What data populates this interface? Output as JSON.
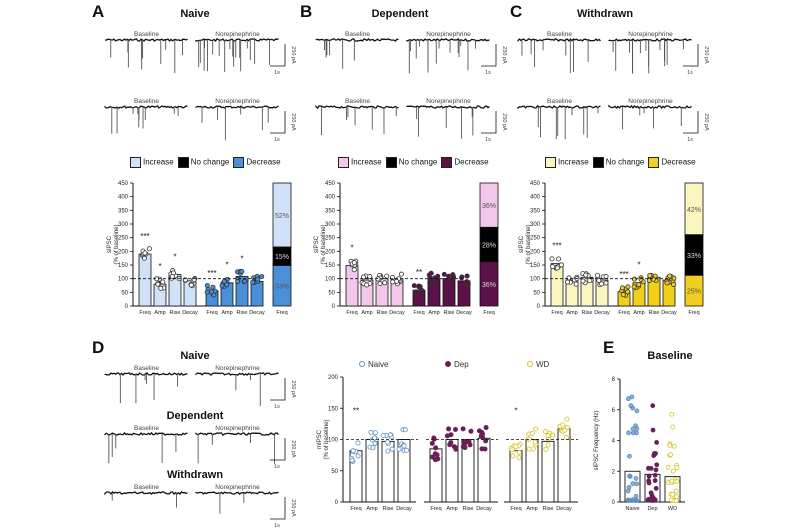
{
  "panels": {
    "A": {
      "letter": "A",
      "title": "Naive"
    },
    "B": {
      "letter": "B",
      "title": "Dependent"
    },
    "C": {
      "letter": "C",
      "title": "Withdrawn"
    },
    "D": {
      "letter": "D",
      "titles": [
        "Naive",
        "Dependent",
        "Withdrawn"
      ]
    },
    "E": {
      "letter": "E",
      "title": "Baseline"
    }
  },
  "trace_labels": {
    "baseline": "Baseline",
    "drug": "Norepinephrine",
    "scale_y": "250 pA",
    "scale_x": "1s"
  },
  "legend": {
    "increase": "Increase",
    "no_change": "No change",
    "decrease": "Decrease"
  },
  "colors": {
    "naive_light": "#cfe2f7",
    "naive_dark": "#4a90d9",
    "dep_light": "#f4c6ec",
    "dep_dark": "#5b1048",
    "wd_light": "#fbf5c0",
    "wd_dark": "#f2cf1d",
    "naive_point": "#5b8fc2",
    "dep_point": "#6a1f57",
    "wd_point": "#d6c21e"
  },
  "chart_data": [
    {
      "id": "A",
      "type": "bar",
      "ylabel": "sIPSC\n(% of baseline)",
      "ylim": [
        0,
        450
      ],
      "yticks": [
        0,
        50,
        100,
        150,
        200,
        250,
        300,
        350,
        400,
        450
      ],
      "reference_line": 100,
      "groups": [
        {
          "name": "Increase",
          "categories": [
            "Freq",
            "Amp",
            "Rise",
            "Decay"
          ],
          "values": [
            190,
            80,
            115,
            92
          ],
          "sig": [
            "***",
            "*",
            "*",
            ""
          ]
        },
        {
          "name": "Decrease",
          "categories": [
            "Freq",
            "Amp",
            "Rise",
            "Decay"
          ],
          "values": [
            55,
            85,
            108,
            90
          ],
          "sig": [
            "***",
            "*",
            "*",
            ""
          ]
        }
      ],
      "stacked": {
        "category": "Freq",
        "segments": [
          {
            "name": "Increase",
            "value": 52,
            "label": "52%"
          },
          {
            "name": "No change",
            "value": 15,
            "label": "15%"
          },
          {
            "name": "Decrease",
            "value": 33,
            "label": "33%"
          }
        ]
      }
    },
    {
      "id": "B",
      "type": "bar",
      "ylabel": "sIPSC\n(% of baseline)",
      "ylim": [
        0,
        450
      ],
      "yticks": [
        0,
        50,
        100,
        150,
        200,
        250,
        300,
        350,
        400,
        450
      ],
      "reference_line": 100,
      "groups": [
        {
          "name": "Increase",
          "categories": [
            "Freq",
            "Amp",
            "Rise",
            "Decay"
          ],
          "values": [
            148,
            95,
            100,
            100
          ],
          "sig": [
            "*",
            "",
            "",
            ""
          ]
        },
        {
          "name": "Decrease",
          "categories": [
            "Freq",
            "Amp",
            "Rise",
            "Decay"
          ],
          "values": [
            58,
            100,
            100,
            92
          ],
          "sig": [
            "**",
            "",
            "",
            ""
          ]
        }
      ],
      "stacked": {
        "category": "Freq",
        "segments": [
          {
            "name": "Increase",
            "value": 36,
            "label": "36%"
          },
          {
            "name": "No change",
            "value": 28,
            "label": "28%"
          },
          {
            "name": "Decrease",
            "value": 36,
            "label": "36%"
          }
        ]
      }
    },
    {
      "id": "C",
      "type": "bar",
      "ylabel": "sIPSC\n(% of baseline)",
      "ylim": [
        0,
        450
      ],
      "yticks": [
        0,
        50,
        100,
        150,
        200,
        250,
        300,
        350,
        400,
        450
      ],
      "reference_line": 100,
      "groups": [
        {
          "name": "Increase",
          "categories": [
            "Freq",
            "Amp",
            "Rise",
            "Decay"
          ],
          "values": [
            155,
            95,
            105,
            95
          ],
          "sig": [
            "***",
            "",
            "",
            ""
          ]
        },
        {
          "name": "Decrease",
          "categories": [
            "Freq",
            "Amp",
            "Rise",
            "Decay"
          ],
          "values": [
            52,
            85,
            105,
            95
          ],
          "sig": [
            "***",
            "*",
            "",
            ""
          ]
        }
      ],
      "stacked": {
        "category": "Freq",
        "segments": [
          {
            "name": "Increase",
            "value": 42,
            "label": "42%"
          },
          {
            "name": "No change",
            "value": 33,
            "label": "33%"
          },
          {
            "name": "Decrease",
            "value": 25,
            "label": "25%"
          }
        ]
      }
    },
    {
      "id": "D",
      "type": "bar",
      "ylabel": "mIPSC\n(% of baseline)",
      "ylim": [
        0,
        200
      ],
      "yticks": [
        0,
        50,
        100,
        150,
        200
      ],
      "reference_line": 100,
      "legend": [
        "Naive",
        "Dep",
        "WD"
      ],
      "categories": [
        "Freq",
        "Amp",
        "Rise",
        "Decay"
      ],
      "series": [
        {
          "name": "Naive",
          "values": [
            82,
            100,
            97,
            100
          ],
          "sig": [
            "**",
            "",
            "",
            ""
          ]
        },
        {
          "name": "Dep",
          "values": [
            85,
            100,
            100,
            102
          ],
          "sig": [
            "",
            "",
            "",
            ""
          ]
        },
        {
          "name": "WD",
          "values": [
            82,
            100,
            97,
            117
          ],
          "sig": [
            "*",
            "",
            "",
            ""
          ]
        }
      ]
    },
    {
      "id": "E",
      "type": "bar",
      "title": "Baseline",
      "ylabel": "sIPSC Frequency (Hz)",
      "ylim": [
        0,
        8
      ],
      "yticks": [
        0,
        2,
        4,
        6,
        8
      ],
      "categories": [
        "Naive",
        "Dep",
        "WD"
      ],
      "values": [
        2.0,
        1.8,
        1.65
      ]
    }
  ]
}
